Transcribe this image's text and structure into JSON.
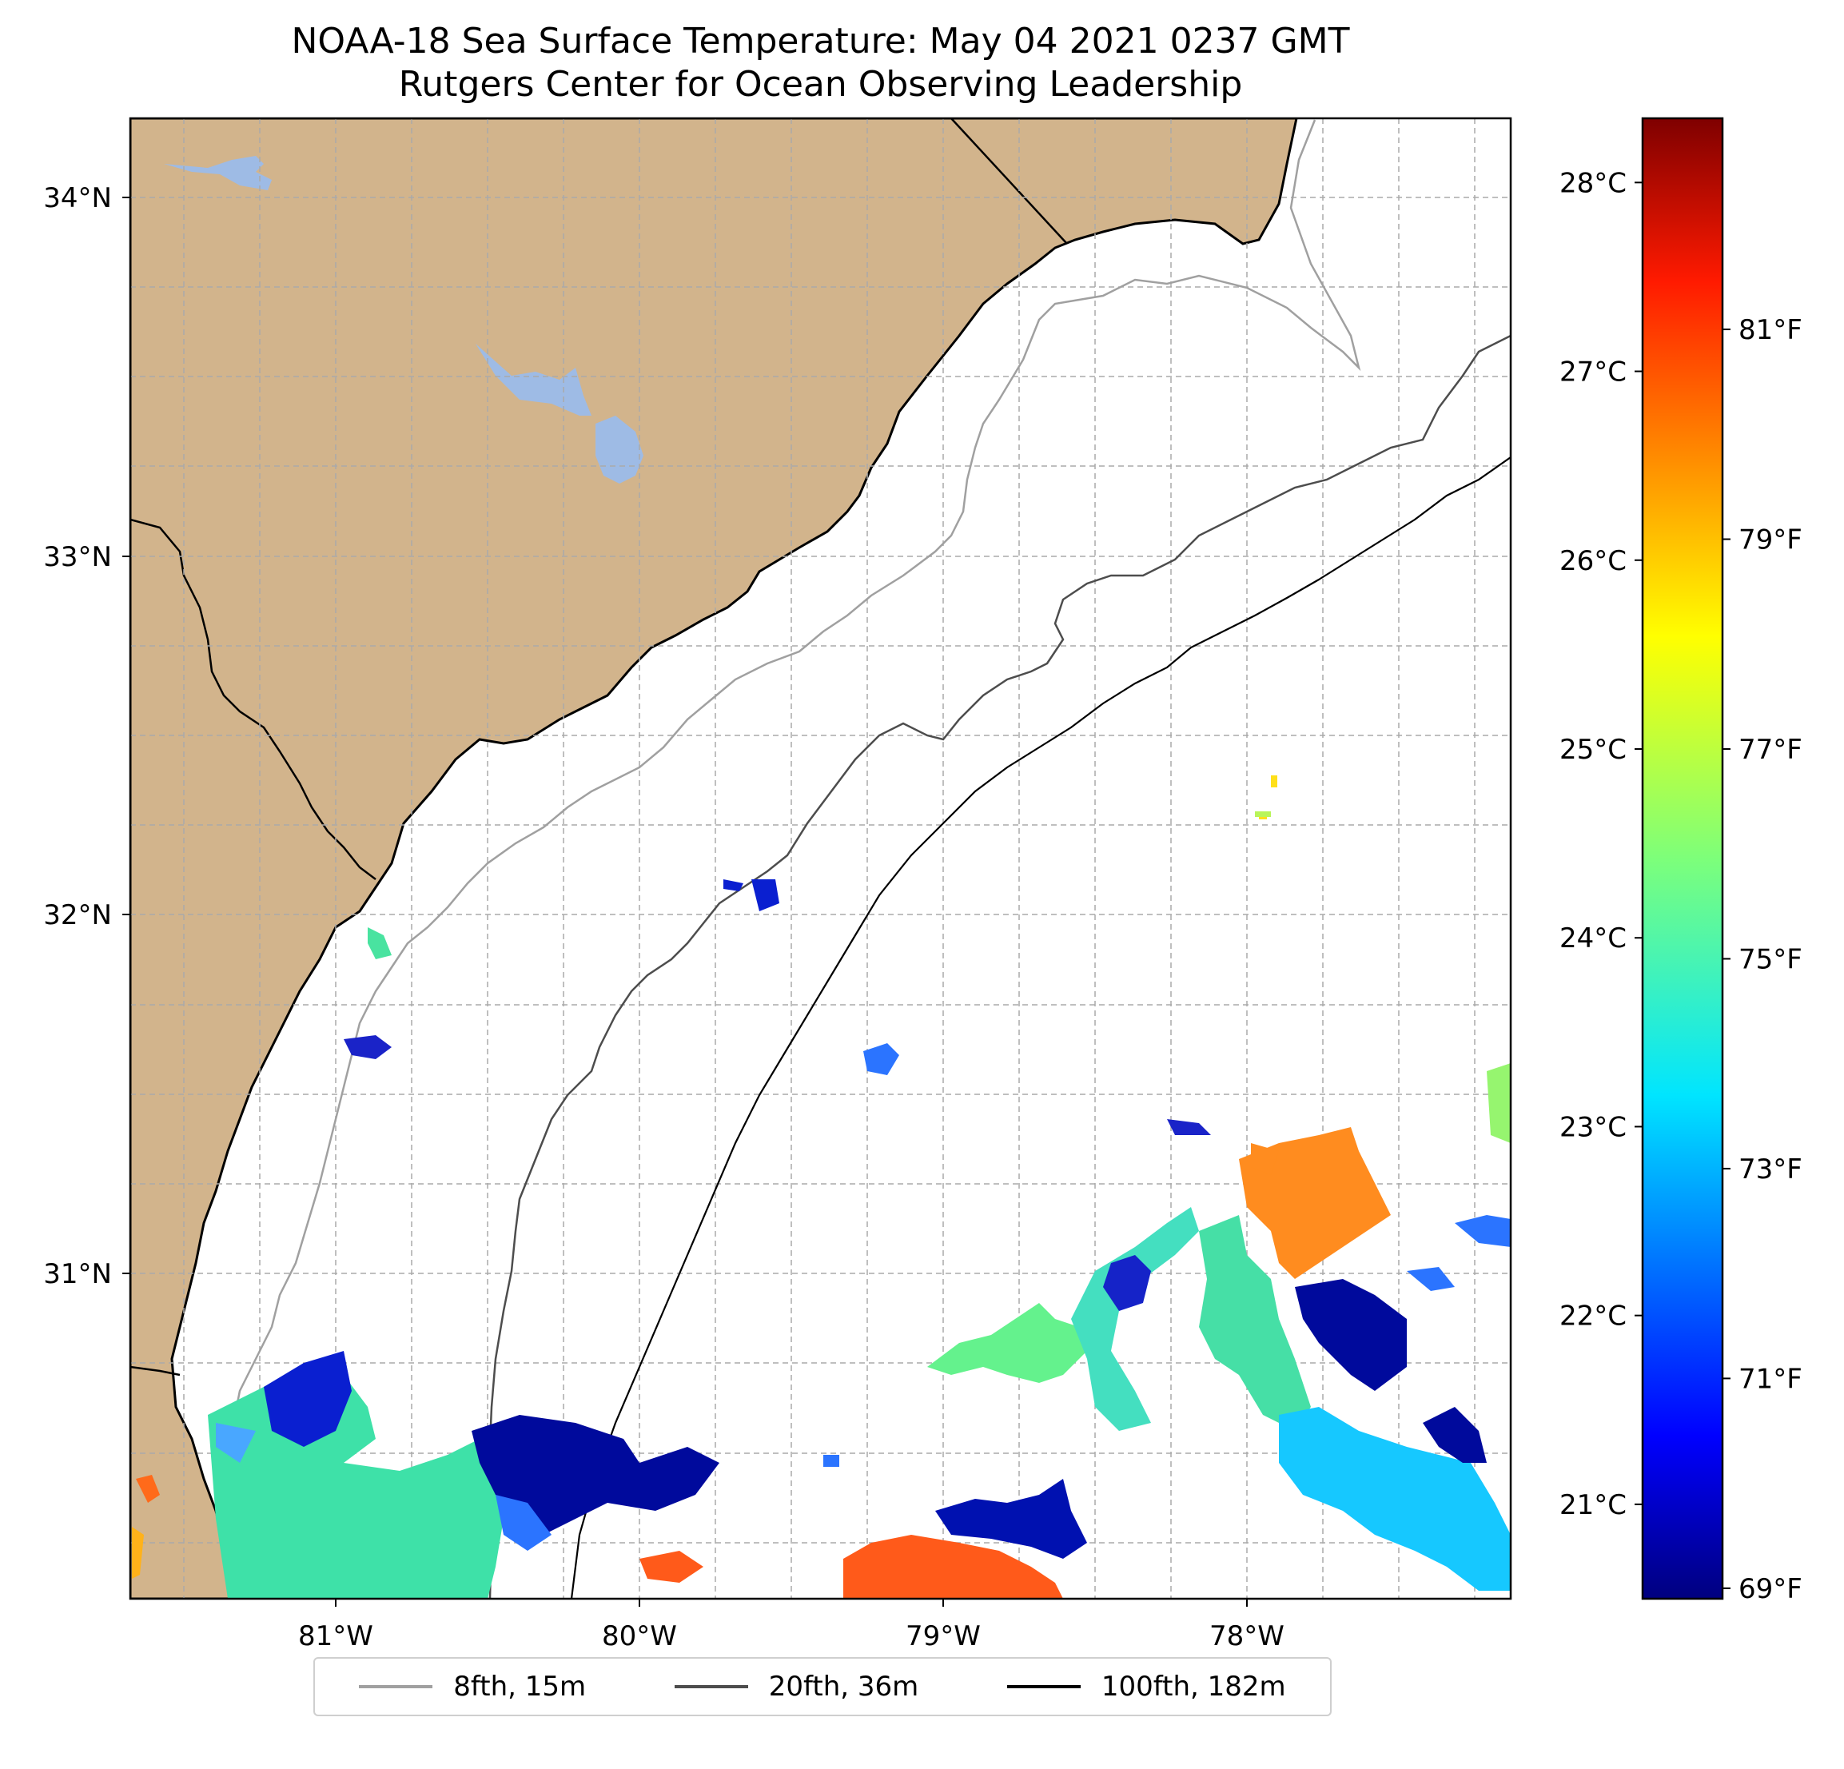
{
  "title": {
    "line1": "NOAA-18 Sea Surface Temperature: May 04 2021 0237 GMT",
    "line2": "Rutgers Center for Ocean Observing Leadership"
  },
  "map": {
    "extent": {
      "lon_min": -81.68,
      "lon_max": -77.1,
      "lat_min": 30.07,
      "lat_max": 34.22
    },
    "land_color": "#d2b48c",
    "lake_color": "#9ebbe5",
    "ocean_color": "#ffffff",
    "gridlines": "dashed grey",
    "lon_ticks": [
      {
        "value": -81,
        "label": "81°W"
      },
      {
        "value": -80,
        "label": "80°W"
      },
      {
        "value": -79,
        "label": "79°W"
      },
      {
        "value": -78,
        "label": "78°W"
      }
    ],
    "lat_ticks": [
      {
        "value": 34,
        "label": "34°N"
      },
      {
        "value": 33,
        "label": "33°N"
      },
      {
        "value": 32,
        "label": "32°N"
      },
      {
        "value": 31,
        "label": "31°N"
      }
    ],
    "isobaths": [
      {
        "label": "8fth, 15m",
        "color": "#a0a0a0"
      },
      {
        "label": "20fth, 36m",
        "color": "#4d4d4d"
      },
      {
        "label": "100fth, 182m",
        "color": "#000000"
      }
    ]
  },
  "colorbar": {
    "colormap": "jet",
    "celsius_ticks": [
      {
        "value": 21,
        "label": "21°C"
      },
      {
        "value": 22,
        "label": "22°C"
      },
      {
        "value": 23,
        "label": "23°C"
      },
      {
        "value": 24,
        "label": "24°C"
      },
      {
        "value": 25,
        "label": "25°C"
      },
      {
        "value": 26,
        "label": "26°C"
      },
      {
        "value": 27,
        "label": "27°C"
      },
      {
        "value": 28,
        "label": "28°C"
      }
    ],
    "fahrenheit_ticks": [
      {
        "value": 69,
        "label": "69°F"
      },
      {
        "value": 71,
        "label": "71°F"
      },
      {
        "value": 73,
        "label": "73°F"
      },
      {
        "value": 75,
        "label": "75°F"
      },
      {
        "value": 77,
        "label": "77°F"
      },
      {
        "value": 79,
        "label": "79°F"
      },
      {
        "value": 81,
        "label": "81°F"
      }
    ]
  },
  "legend": [
    {
      "label": "8fth, 15m",
      "color": "#a0a0a0"
    },
    {
      "label": "20fth, 36m",
      "color": "#4d4d4d"
    },
    {
      "label": "100fth, 182m",
      "color": "#000000"
    }
  ]
}
